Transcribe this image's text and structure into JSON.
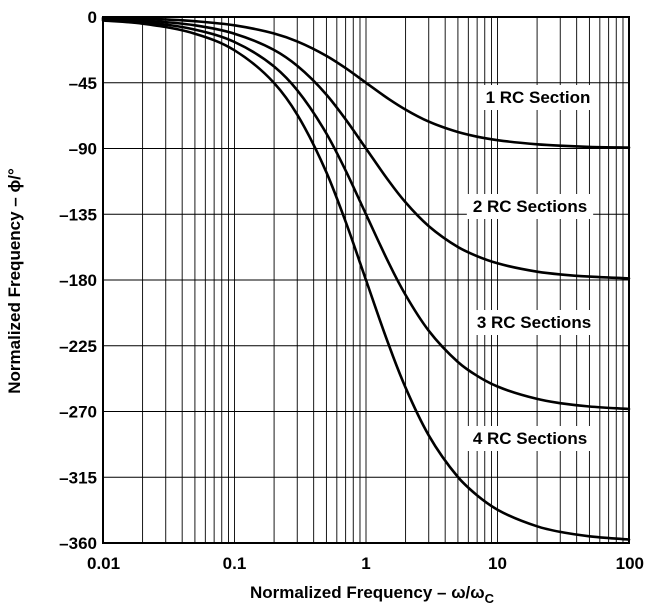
{
  "chart_data": {
    "type": "line",
    "title": "",
    "xlabel": "Normalized Frequency – ω/ωC",
    "xlabel_parts": {
      "main": "Normalized Frequency – ω/ω",
      "subscript": "C"
    },
    "ylabel": "Normalized Frequency – ϕ/°",
    "x_scale": "log",
    "xlim": [
      0.01,
      100
    ],
    "ylim": [
      -360,
      0
    ],
    "grid": true,
    "x_tick_labels": [
      "0.01",
      "0.1",
      "1",
      "10",
      "100"
    ],
    "x_tick_values": [
      0.01,
      0.1,
      1,
      10,
      100
    ],
    "y_tick_labels": [
      "0",
      "–45",
      "–90",
      "–135",
      "–180",
      "–225",
      "–270",
      "–315",
      "–360"
    ],
    "y_tick_values": [
      0,
      -45,
      -90,
      -135,
      -180,
      -225,
      -270,
      -315,
      -360
    ],
    "series": [
      {
        "name": "1 RC Section",
        "x": [
          0.01,
          0.02,
          0.05,
          0.1,
          0.2,
          0.3,
          0.5,
          0.7,
          1,
          1.5,
          2,
          3,
          5,
          7,
          10,
          20,
          30,
          50,
          100
        ],
        "y": [
          -0.6,
          -1.1,
          -2.9,
          -5.7,
          -11.3,
          -16.7,
          -26.6,
          -35,
          -45,
          -56.3,
          -63.4,
          -71.6,
          -78.7,
          -81.9,
          -84.3,
          -87.1,
          -88.1,
          -88.9,
          -89.4
        ]
      },
      {
        "name": "2 RC Sections",
        "x": [
          0.01,
          0.02,
          0.05,
          0.1,
          0.2,
          0.3,
          0.5,
          0.7,
          1,
          1.5,
          2,
          3,
          5,
          7,
          10,
          20,
          30,
          50,
          100
        ],
        "y": [
          -1.1,
          -2.3,
          -5.7,
          -11.4,
          -22.6,
          -33.4,
          -53.1,
          -70,
          -90,
          -112.6,
          -126.9,
          -143.1,
          -157.4,
          -163.7,
          -168.6,
          -174.3,
          -176.2,
          -177.7,
          -178.9
        ]
      },
      {
        "name": "3 RC Sections",
        "x": [
          0.01,
          0.02,
          0.05,
          0.1,
          0.2,
          0.3,
          0.5,
          0.7,
          1,
          1.5,
          2,
          3,
          5,
          7,
          10,
          20,
          30,
          50,
          100
        ],
        "y": [
          -1.7,
          -3.4,
          -8.6,
          -17.1,
          -33.9,
          -50.1,
          -79.7,
          -105,
          -135,
          -168.9,
          -190.3,
          -214.7,
          -236.1,
          -245.6,
          -252.9,
          -261.4,
          -264.3,
          -266.6,
          -268.3
        ]
      },
      {
        "name": "4 RC Sections",
        "x": [
          0.01,
          0.02,
          0.05,
          0.1,
          0.2,
          0.3,
          0.5,
          0.7,
          1,
          1.5,
          2,
          3,
          5,
          7,
          10,
          20,
          30,
          50,
          100
        ],
        "y": [
          -2.3,
          -4.6,
          -11.4,
          -22.8,
          -45.2,
          -66.8,
          -106.3,
          -140,
          -180,
          -225.2,
          -253.7,
          -286.3,
          -314.8,
          -327.4,
          -337.2,
          -348.6,
          -352.4,
          -355.4,
          -357.7
        ]
      }
    ]
  }
}
